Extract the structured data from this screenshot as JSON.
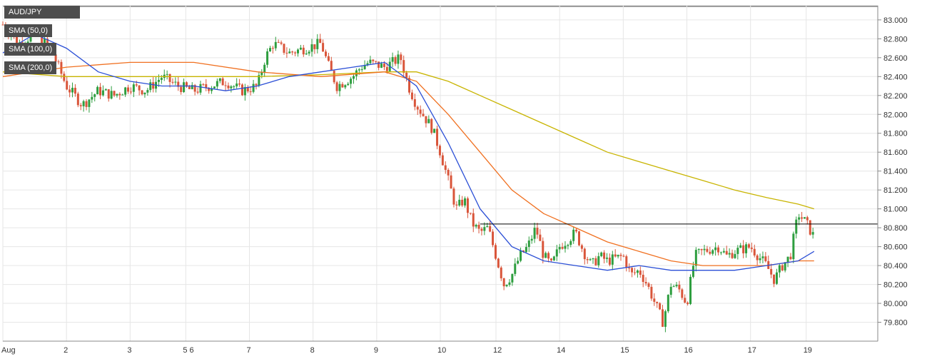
{
  "chart_data": {
    "type": "candlestick",
    "symbol": "AUD/JPY",
    "indicators": [
      {
        "name": "SMA (50,0)",
        "color": "#2b4fd6"
      },
      {
        "name": "SMA (100,0)",
        "color": "#f07020"
      },
      {
        "name": "SMA (200,0)",
        "color": "#c8b400"
      }
    ],
    "colors": {
      "up": "#2e9e3f",
      "down": "#d9553a",
      "resistance": "#000000",
      "grid": "#e6e6e6"
    },
    "y_range": [
      79.6,
      83.15
    ],
    "y_ticks": [
      "83.000",
      "82.800",
      "82.600",
      "82.400",
      "82.200",
      "82.000",
      "81.800",
      "81.600",
      "81.400",
      "81.200",
      "81.000",
      "80.800",
      "80.600",
      "80.400",
      "80.200",
      "80.000",
      "79.800"
    ],
    "x_ticks": [
      {
        "label": "Aug",
        "pos": 0.0
      },
      {
        "label": "2",
        "pos": 8
      },
      {
        "label": "3",
        "pos": 16
      },
      {
        "label": "5 6",
        "pos": 23
      },
      {
        "label": "7",
        "pos": 31
      },
      {
        "label": "8",
        "pos": 39
      },
      {
        "label": "9",
        "pos": 47
      },
      {
        "label": "10",
        "pos": 55
      },
      {
        "label": "12",
        "pos": 62
      },
      {
        "label": "14",
        "pos": 70
      },
      {
        "label": "15",
        "pos": 78
      },
      {
        "label": "16",
        "pos": 86
      },
      {
        "label": "17",
        "pos": 94
      },
      {
        "label": "19",
        "pos": 101
      }
    ],
    "resistance_level": 80.84,
    "price_path": [
      [
        0,
        82.95
      ],
      [
        2,
        82.75
      ],
      [
        4,
        82.85
      ],
      [
        6,
        82.7
      ],
      [
        8,
        82.3
      ],
      [
        10,
        82.1
      ],
      [
        12,
        82.25
      ],
      [
        14,
        82.2
      ],
      [
        16,
        82.3
      ],
      [
        18,
        82.25
      ],
      [
        20,
        82.4
      ],
      [
        22,
        82.3
      ],
      [
        24,
        82.25
      ],
      [
        26,
        82.3
      ],
      [
        28,
        82.35
      ],
      [
        30,
        82.25
      ],
      [
        32,
        82.3
      ],
      [
        33,
        82.6
      ],
      [
        34,
        82.75
      ],
      [
        36,
        82.65
      ],
      [
        38,
        82.7
      ],
      [
        40,
        82.75
      ],
      [
        41,
        82.5
      ],
      [
        42,
        82.3
      ],
      [
        44,
        82.4
      ],
      [
        45,
        82.5
      ],
      [
        46,
        82.55
      ],
      [
        48,
        82.5
      ],
      [
        50,
        82.6
      ],
      [
        51,
        82.3
      ],
      [
        52,
        82.1
      ],
      [
        54,
        81.85
      ],
      [
        55,
        81.6
      ],
      [
        56,
        81.3
      ],
      [
        57,
        81.0
      ],
      [
        58,
        81.1
      ],
      [
        59,
        80.85
      ],
      [
        60,
        80.75
      ],
      [
        61,
        80.8
      ],
      [
        62,
        80.5
      ],
      [
        63,
        80.2
      ],
      [
        64,
        80.3
      ],
      [
        65,
        80.5
      ],
      [
        66,
        80.6
      ],
      [
        67,
        80.8
      ],
      [
        68,
        80.5
      ],
      [
        69,
        80.4
      ],
      [
        70,
        80.6
      ],
      [
        72,
        80.75
      ],
      [
        73,
        80.55
      ],
      [
        74,
        80.4
      ],
      [
        75,
        80.5
      ],
      [
        76,
        80.45
      ],
      [
        78,
        80.5
      ],
      [
        79,
        80.3
      ],
      [
        80,
        80.35
      ],
      [
        81,
        80.2
      ],
      [
        82,
        80.0
      ],
      [
        83,
        79.8
      ],
      [
        84,
        80.2
      ],
      [
        85,
        80.15
      ],
      [
        86,
        80.0
      ],
      [
        87,
        80.5
      ],
      [
        88,
        80.55
      ],
      [
        90,
        80.6
      ],
      [
        91,
        80.5
      ],
      [
        92,
        80.55
      ],
      [
        94,
        80.6
      ],
      [
        95,
        80.5
      ],
      [
        96,
        80.4
      ],
      [
        97,
        80.25
      ],
      [
        98,
        80.4
      ],
      [
        99,
        80.5
      ],
      [
        100,
        80.95
      ],
      [
        101,
        80.85
      ],
      [
        102,
        80.7
      ]
    ],
    "sma50": [
      [
        0,
        82.65
      ],
      [
        4,
        82.85
      ],
      [
        8,
        82.7
      ],
      [
        12,
        82.45
      ],
      [
        16,
        82.35
      ],
      [
        20,
        82.3
      ],
      [
        24,
        82.3
      ],
      [
        28,
        82.25
      ],
      [
        32,
        82.3
      ],
      [
        36,
        82.4
      ],
      [
        40,
        82.45
      ],
      [
        44,
        82.5
      ],
      [
        48,
        82.55
      ],
      [
        52,
        82.3
      ],
      [
        56,
        81.7
      ],
      [
        60,
        81.0
      ],
      [
        64,
        80.6
      ],
      [
        68,
        80.45
      ],
      [
        72,
        80.4
      ],
      [
        76,
        80.35
      ],
      [
        80,
        80.4
      ],
      [
        84,
        80.35
      ],
      [
        88,
        80.35
      ],
      [
        92,
        80.35
      ],
      [
        96,
        80.4
      ],
      [
        100,
        80.45
      ],
      [
        102,
        80.55
      ]
    ],
    "sma100": [
      [
        0,
        82.4
      ],
      [
        8,
        82.5
      ],
      [
        16,
        82.55
      ],
      [
        24,
        82.55
      ],
      [
        32,
        82.45
      ],
      [
        40,
        82.4
      ],
      [
        48,
        82.45
      ],
      [
        52,
        82.35
      ],
      [
        56,
        82.0
      ],
      [
        60,
        81.6
      ],
      [
        64,
        81.2
      ],
      [
        68,
        80.95
      ],
      [
        72,
        80.8
      ],
      [
        76,
        80.65
      ],
      [
        80,
        80.55
      ],
      [
        84,
        80.45
      ],
      [
        88,
        80.4
      ],
      [
        92,
        80.4
      ],
      [
        96,
        80.4
      ],
      [
        100,
        80.45
      ],
      [
        102,
        80.45
      ]
    ],
    "sma200": [
      [
        0,
        82.45
      ],
      [
        8,
        82.4
      ],
      [
        16,
        82.4
      ],
      [
        24,
        82.4
      ],
      [
        32,
        82.4
      ],
      [
        40,
        82.42
      ],
      [
        48,
        82.45
      ],
      [
        52,
        82.45
      ],
      [
        56,
        82.35
      ],
      [
        60,
        82.2
      ],
      [
        64,
        82.05
      ],
      [
        68,
        81.9
      ],
      [
        72,
        81.75
      ],
      [
        76,
        81.6
      ],
      [
        80,
        81.5
      ],
      [
        84,
        81.4
      ],
      [
        88,
        81.3
      ],
      [
        92,
        81.2
      ],
      [
        96,
        81.12
      ],
      [
        100,
        81.05
      ],
      [
        102,
        81.0
      ]
    ]
  }
}
